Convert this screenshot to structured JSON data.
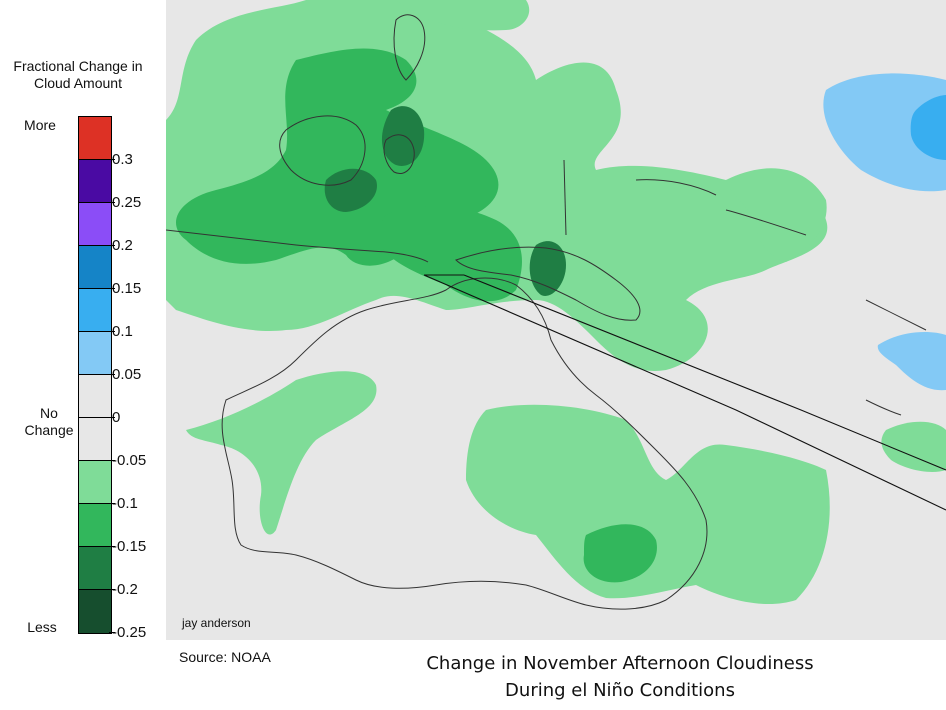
{
  "legend": {
    "title_line1": "Fractional Change in",
    "title_line2": "Cloud Amount",
    "more_label": "More",
    "no_change_line1": "No",
    "no_change_line2": "Change",
    "less_label": "Less",
    "colors": [
      "#dd3125",
      "#4a0aa3",
      "#8b4df7",
      "#1584c7",
      "#38aef0",
      "#83c9f5",
      "#e7e7e7",
      "#e7e7e7",
      "#7fdc98",
      "#32b75c",
      "#1f7e44",
      "#164e2e"
    ],
    "ticks": [
      "0.3",
      "0.25",
      "0.2",
      "0.15",
      "0.1",
      "0.05",
      "0",
      "-0.05",
      "-0.1",
      "-0.15",
      "-0.2",
      "-0.25"
    ]
  },
  "map": {
    "background_color": "#e7e7e7",
    "light_green": "#7fdc98",
    "mid_green": "#32b75c",
    "dark_green": "#1f7e44",
    "light_blue": "#83c9f5",
    "mid_blue": "#38aef0"
  },
  "credit": "jay anderson",
  "source": "Source: NOAA",
  "caption_line1": "Change in November Afternoon Cloudiness",
  "caption_line2": "During el Niño Conditions"
}
